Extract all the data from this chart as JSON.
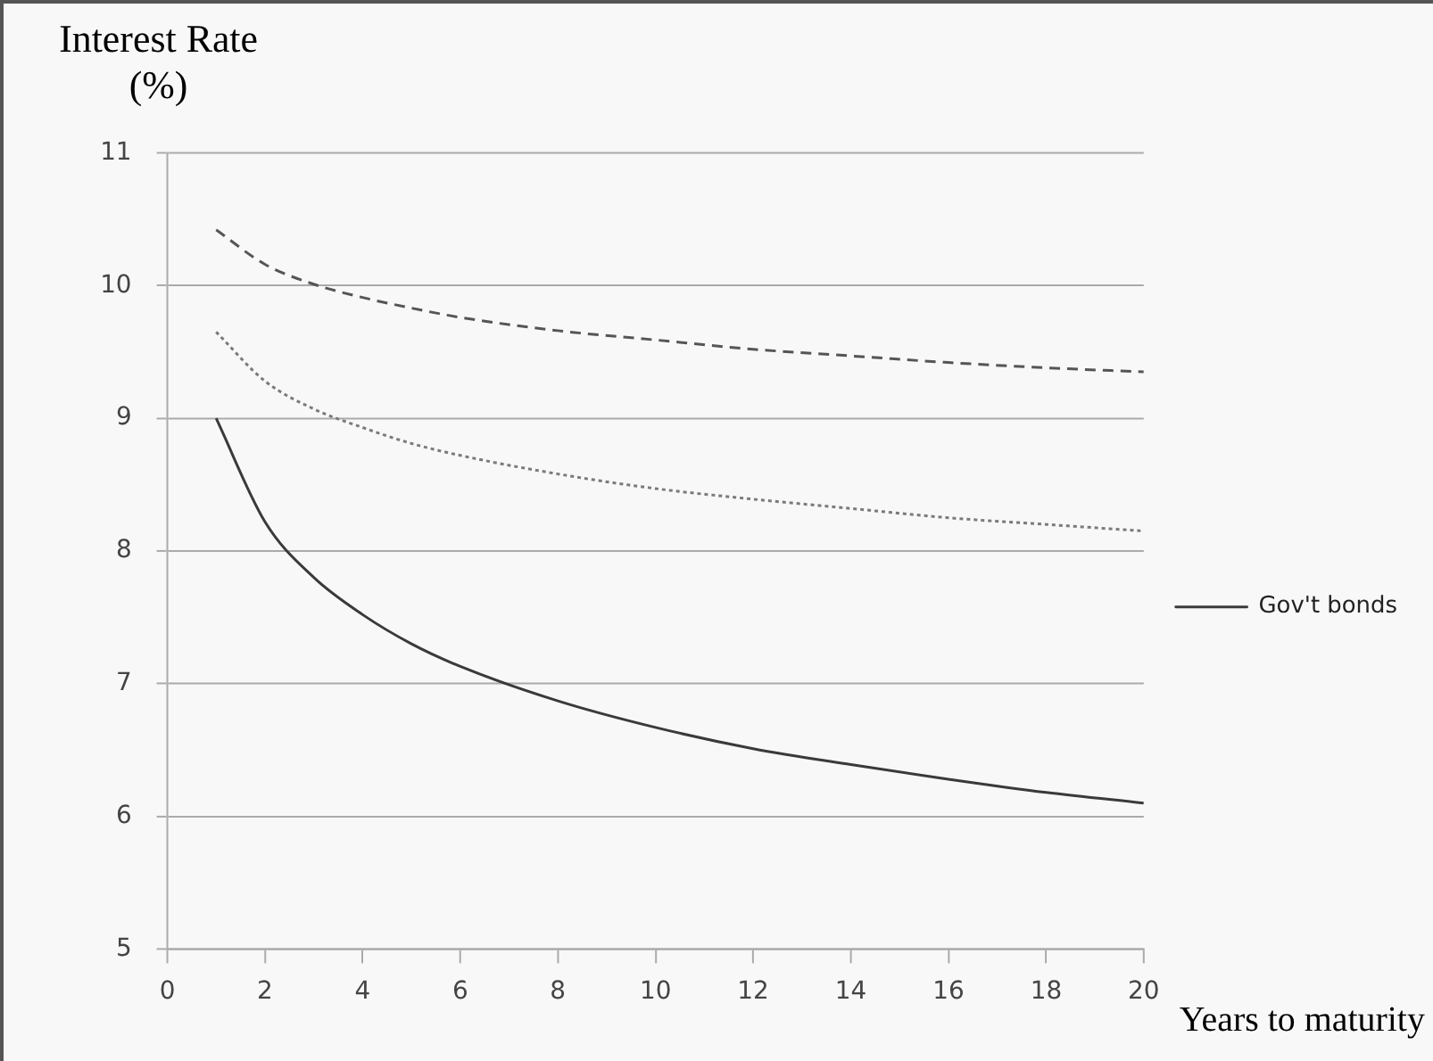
{
  "chart_data": {
    "type": "line",
    "ylabel": "Interest Rate (%)",
    "xlabel": "Years to maturity",
    "xlim": [
      0,
      20
    ],
    "xticks": [
      0,
      2,
      4,
      6,
      8,
      10,
      12,
      14,
      16,
      18,
      20
    ],
    "ylim": [
      5,
      11
    ],
    "yticks": [
      5,
      6,
      7,
      8,
      9,
      10,
      11
    ],
    "grid": "y",
    "legend": "right",
    "marker": "none",
    "x": [
      1,
      2,
      3,
      4,
      5,
      6,
      8,
      10,
      12,
      14,
      16,
      18,
      20
    ],
    "series": [
      {
        "name": "Gov't bonds",
        "color": "#3a3a3a",
        "line_style": "solid",
        "values": [
          9.0,
          8.22,
          7.8,
          7.52,
          7.3,
          7.13,
          6.87,
          6.67,
          6.51,
          6.39,
          6.28,
          6.18,
          6.1
        ]
      },
      {
        "color": "#7a7a7a",
        "line_style": "dotted",
        "values": [
          9.65,
          9.28,
          9.07,
          8.93,
          8.81,
          8.72,
          8.58,
          8.47,
          8.39,
          8.32,
          8.25,
          8.2,
          8.15
        ]
      },
      {
        "color": "#555555",
        "line_style": "dashed",
        "values": [
          10.42,
          10.16,
          10.01,
          9.91,
          9.83,
          9.76,
          9.66,
          9.59,
          9.52,
          9.47,
          9.42,
          9.38,
          9.35
        ]
      }
    ]
  }
}
